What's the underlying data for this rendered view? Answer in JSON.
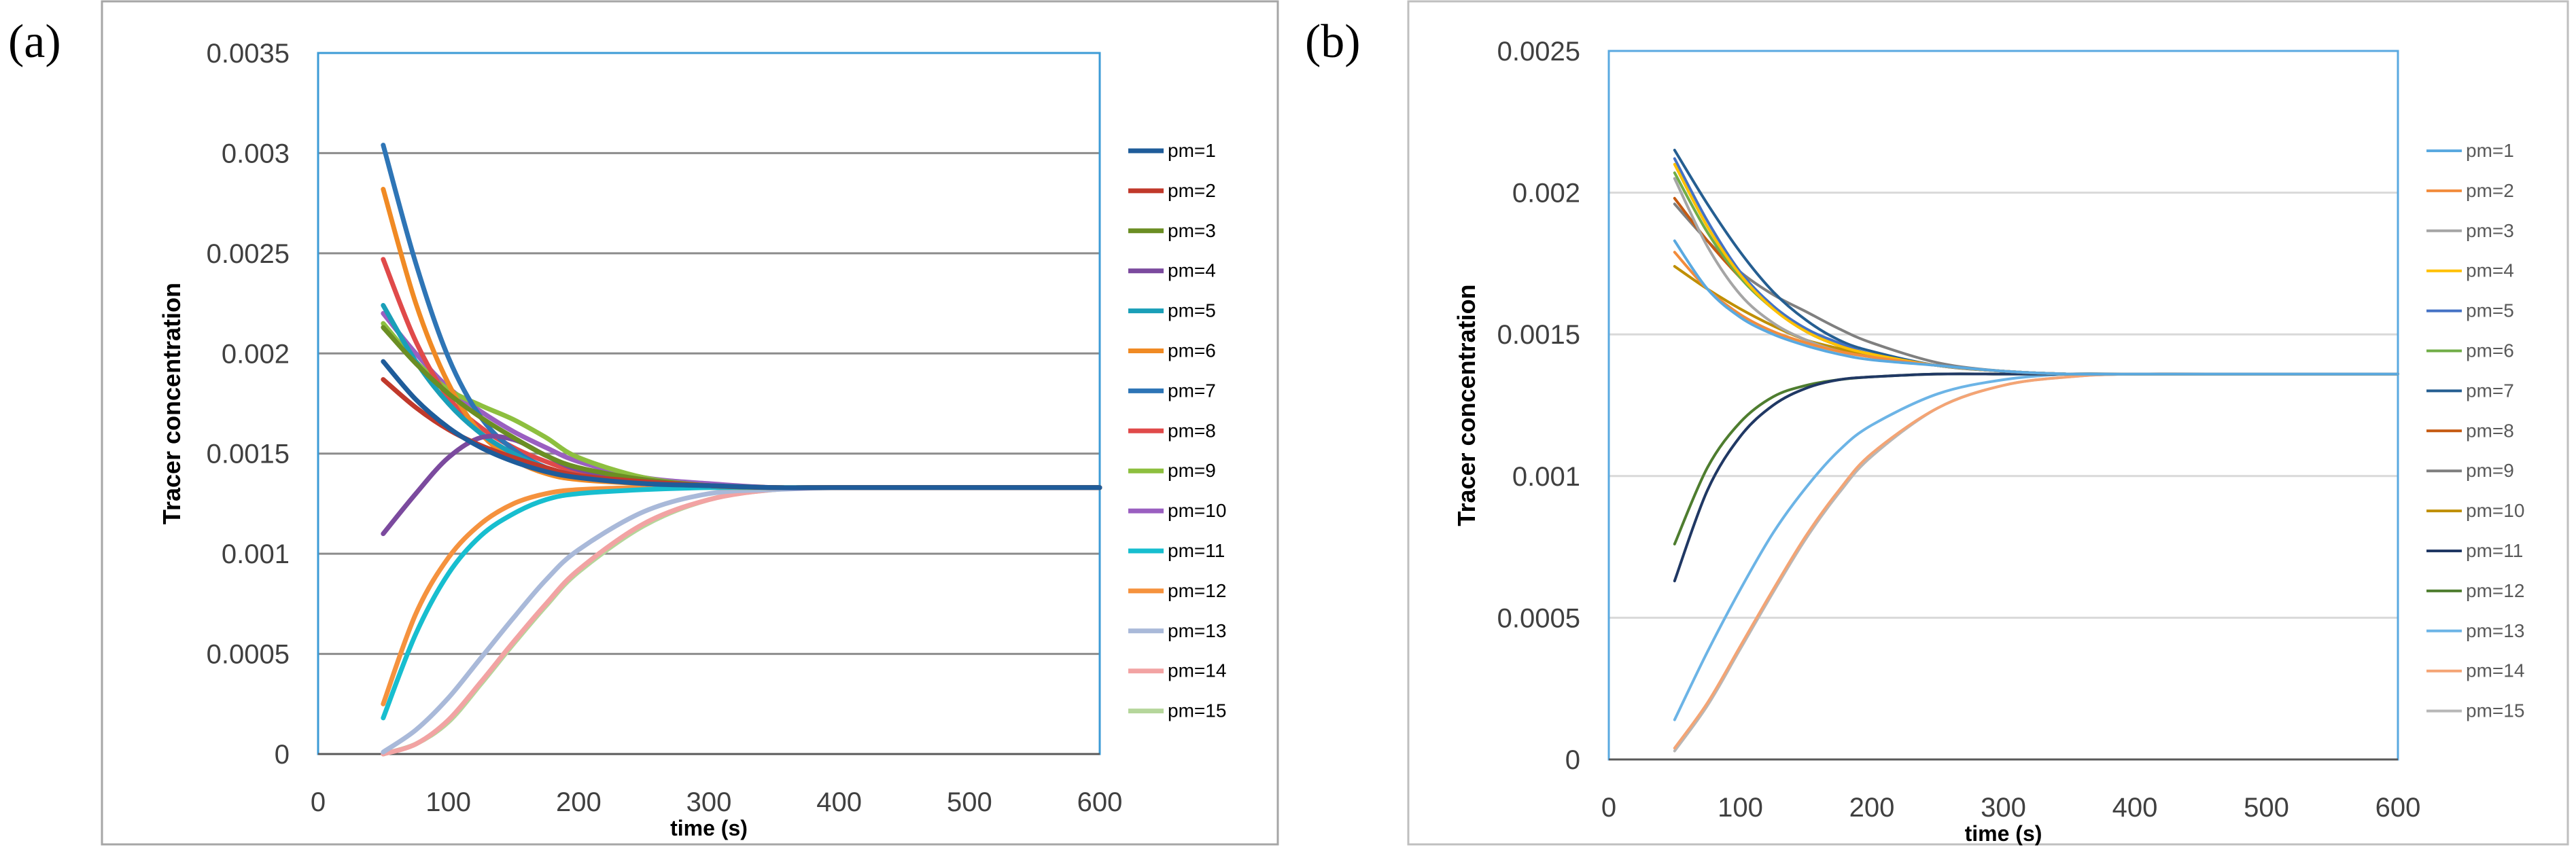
{
  "chart_data": [
    {
      "panel_label": "(a)",
      "type": "line",
      "xlabel": "time (s)",
      "ylabel": "Tracer concentration",
      "xlim": [
        0,
        600
      ],
      "ylim": [
        0,
        0.0035
      ],
      "xticks": [
        0,
        100,
        200,
        300,
        400,
        500,
        600
      ],
      "yticks": [
        0,
        0.0005,
        0.001,
        0.0015,
        0.002,
        0.0025,
        0.003,
        0.0035
      ],
      "ytick_labels": [
        "0",
        "0.0005",
        "0.001",
        "0.0015",
        "0.002",
        "0.0025",
        "0.003",
        "0.0035"
      ],
      "x": [
        50,
        75,
        100,
        125,
        150,
        175,
        200,
        250,
        300,
        350,
        400,
        500,
        600
      ],
      "grid": "horizontal",
      "legend": "right",
      "series": [
        {
          "name": "pm=1",
          "color": "#1f5c9a",
          "values": [
            0.00196,
            0.00177,
            0.00163,
            0.00153,
            0.00146,
            0.00141,
            0.00138,
            0.00135,
            0.00134,
            0.00133,
            0.00133,
            0.00133,
            0.00133
          ]
        },
        {
          "name": "pm=2",
          "color": "#c0392b",
          "values": [
            0.00187,
            0.00173,
            0.00162,
            0.00154,
            0.00148,
            0.00143,
            0.00139,
            0.00136,
            0.00134,
            0.00133,
            0.00133,
            0.00133,
            0.00133
          ]
        },
        {
          "name": "pm=3",
          "color": "#6b8e23",
          "values": [
            0.00213,
            0.00195,
            0.0018,
            0.00168,
            0.00158,
            0.00149,
            0.00143,
            0.00137,
            0.00134,
            0.00133,
            0.00133,
            0.00133,
            0.00133
          ]
        },
        {
          "name": "pm=4",
          "color": "#7b4a9e",
          "values": [
            0.0011,
            0.0013,
            0.00148,
            0.00158,
            0.00157,
            0.00149,
            0.00142,
            0.00137,
            0.00134,
            0.00133,
            0.00133,
            0.00133,
            0.00133
          ]
        },
        {
          "name": "pm=5",
          "color": "#1a9fb8",
          "values": [
            0.00224,
            0.00196,
            0.00175,
            0.0016,
            0.0015,
            0.00143,
            0.00139,
            0.00135,
            0.00134,
            0.00133,
            0.00133,
            0.00133,
            0.00133
          ]
        },
        {
          "name": "pm=6",
          "color": "#f08a24",
          "values": [
            0.00282,
            0.00225,
            0.00185,
            0.0016,
            0.00147,
            0.0014,
            0.00137,
            0.00135,
            0.00134,
            0.00133,
            0.00133,
            0.00133,
            0.00133
          ]
        },
        {
          "name": "pm=7",
          "color": "#2e75b6",
          "values": [
            0.00304,
            0.00245,
            0.00198,
            0.00168,
            0.00152,
            0.00143,
            0.00138,
            0.00135,
            0.00134,
            0.00133,
            0.00133,
            0.00133,
            0.00133
          ]
        },
        {
          "name": "pm=8",
          "color": "#e04a4a",
          "values": [
            0.00247,
            0.00206,
            0.00178,
            0.00163,
            0.00153,
            0.00146,
            0.00141,
            0.00136,
            0.00134,
            0.00133,
            0.00133,
            0.00133,
            0.00133
          ]
        },
        {
          "name": "pm=9",
          "color": "#8dbf3f",
          "values": [
            0.00215,
            0.00196,
            0.00182,
            0.00174,
            0.00167,
            0.00158,
            0.00148,
            0.00138,
            0.00134,
            0.00133,
            0.00133,
            0.00133,
            0.00133
          ]
        },
        {
          "name": "pm=10",
          "color": "#9a5fc0",
          "values": [
            0.0022,
            0.002,
            0.00183,
            0.00171,
            0.00161,
            0.00153,
            0.00146,
            0.00138,
            0.00135,
            0.00133,
            0.00133,
            0.00133,
            0.00133
          ]
        },
        {
          "name": "pm=11",
          "color": "#17becf",
          "values": [
            0.00018,
            0.0006,
            0.0009,
            0.00109,
            0.0012,
            0.00127,
            0.0013,
            0.00132,
            0.00133,
            0.00133,
            0.00133,
            0.00133,
            0.00133
          ]
        },
        {
          "name": "pm=12",
          "color": "#f5923e",
          "values": [
            0.00025,
            0.0007,
            0.00098,
            0.00115,
            0.00125,
            0.0013,
            0.00132,
            0.00133,
            0.00133,
            0.00133,
            0.00133,
            0.00133,
            0.00133
          ]
        },
        {
          "name": "pm=13",
          "color": "#a9b9d9",
          "values": [
            1e-05,
            0.00012,
            0.00028,
            0.00048,
            0.00068,
            0.00087,
            0.00102,
            0.00121,
            0.0013,
            0.00132,
            0.00133,
            0.00133,
            0.00133
          ]
        },
        {
          "name": "pm=14",
          "color": "#f2a3a3",
          "values": [
            0.0,
            5e-05,
            0.00017,
            0.00036,
            0.00056,
            0.00075,
            0.00092,
            0.00115,
            0.00127,
            0.00132,
            0.00133,
            0.00133,
            0.00133
          ]
        },
        {
          "name": "pm=15",
          "color": "#b5d69b",
          "values": [
            0.0,
            5e-05,
            0.00016,
            0.00035,
            0.00055,
            0.00074,
            0.00091,
            0.00114,
            0.00127,
            0.00132,
            0.00133,
            0.00133,
            0.00133
          ]
        }
      ]
    },
    {
      "panel_label": "(b)",
      "type": "line",
      "xlabel": "time (s)",
      "ylabel": "Tracer concentration",
      "xlim": [
        0,
        600
      ],
      "ylim": [
        0,
        0.0025
      ],
      "xticks": [
        0,
        100,
        200,
        300,
        400,
        500,
        600
      ],
      "yticks": [
        0,
        0.0005,
        0.001,
        0.0015,
        0.002,
        0.0025
      ],
      "ytick_labels": [
        "0",
        "0.0005",
        "0.001",
        "0.0015",
        "0.002",
        "0.0025"
      ],
      "x": [
        50,
        75,
        100,
        125,
        150,
        175,
        200,
        250,
        300,
        350,
        400,
        500,
        600
      ],
      "grid": "horizontal",
      "legend": "right",
      "series": [
        {
          "name": "pm=1",
          "color": "#5aa9e0",
          "values": [
            0.00183,
            0.00166,
            0.00156,
            0.0015,
            0.00146,
            0.00143,
            0.00141,
            0.00139,
            0.00137,
            0.00136,
            0.00136,
            0.00136,
            0.00136
          ]
        },
        {
          "name": "pm=2",
          "color": "#f28c3c",
          "values": [
            0.00179,
            0.00166,
            0.00157,
            0.00151,
            0.00147,
            0.00144,
            0.00142,
            0.00139,
            0.00137,
            0.00136,
            0.00136,
            0.00136,
            0.00136
          ]
        },
        {
          "name": "pm=3",
          "color": "#a5a5a5",
          "values": [
            0.00205,
            0.00181,
            0.00164,
            0.00154,
            0.00148,
            0.00144,
            0.00142,
            0.00139,
            0.00137,
            0.00136,
            0.00136,
            0.00136,
            0.00136
          ]
        },
        {
          "name": "pm=4",
          "color": "#ffc000",
          "values": [
            0.0021,
            0.00188,
            0.00171,
            0.00159,
            0.00151,
            0.00146,
            0.00143,
            0.00139,
            0.00137,
            0.00136,
            0.00136,
            0.00136,
            0.00136
          ]
        },
        {
          "name": "pm=5",
          "color": "#4472c4",
          "values": [
            0.00212,
            0.0019,
            0.00172,
            0.0016,
            0.00152,
            0.00147,
            0.00143,
            0.00139,
            0.00137,
            0.00136,
            0.00136,
            0.00136,
            0.00136
          ]
        },
        {
          "name": "pm=6",
          "color": "#70ad47",
          "values": [
            0.00207,
            0.00186,
            0.0017,
            0.00159,
            0.00151,
            0.00146,
            0.00143,
            0.00139,
            0.00137,
            0.00136,
            0.00136,
            0.00136,
            0.00136
          ]
        },
        {
          "name": "pm=7",
          "color": "#255e91",
          "values": [
            0.00215,
            0.00196,
            0.00179,
            0.00165,
            0.00155,
            0.00148,
            0.00144,
            0.00139,
            0.00137,
            0.00136,
            0.00136,
            0.00136,
            0.00136
          ]
        },
        {
          "name": "pm=8",
          "color": "#c55a11",
          "values": [
            0.00198,
            0.00183,
            0.0017,
            0.00159,
            0.00151,
            0.00146,
            0.00143,
            0.00139,
            0.00137,
            0.00136,
            0.00136,
            0.00136,
            0.00136
          ]
        },
        {
          "name": "pm=9",
          "color": "#7f7f7f",
          "values": [
            0.00196,
            0.00183,
            0.00172,
            0.00164,
            0.00158,
            0.00152,
            0.00147,
            0.0014,
            0.00137,
            0.00136,
            0.00136,
            0.00136,
            0.00136
          ]
        },
        {
          "name": "pm=10",
          "color": "#bf8f00",
          "values": [
            0.00174,
            0.00166,
            0.00159,
            0.00153,
            0.00148,
            0.00145,
            0.00142,
            0.00139,
            0.00137,
            0.00136,
            0.00136,
            0.00136,
            0.00136
          ]
        },
        {
          "name": "pm=11",
          "color": "#203864",
          "values": [
            0.00063,
            0.00095,
            0.00114,
            0.00125,
            0.00131,
            0.00134,
            0.00135,
            0.00136,
            0.00136,
            0.00136,
            0.00136,
            0.00136,
            0.00136
          ]
        },
        {
          "name": "pm=12",
          "color": "#4e7d2f",
          "values": [
            0.00076,
            0.00103,
            0.00119,
            0.00128,
            0.00132,
            0.00134,
            0.00135,
            0.00136,
            0.00136,
            0.00136,
            0.00136,
            0.00136,
            0.00136
          ]
        },
        {
          "name": "pm=13",
          "color": "#6cb4e6",
          "values": [
            0.00014,
            0.00038,
            0.0006,
            0.0008,
            0.00096,
            0.00109,
            0.00118,
            0.00129,
            0.00134,
            0.00136,
            0.00136,
            0.00136,
            0.00136
          ]
        },
        {
          "name": "pm=14",
          "color": "#f4a474",
          "values": [
            4e-05,
            0.0002,
            0.0004,
            0.0006,
            0.00079,
            0.00095,
            0.00108,
            0.00124,
            0.00132,
            0.00135,
            0.00136,
            0.00136,
            0.00136
          ]
        },
        {
          "name": "pm=15",
          "color": "#b7b7b7",
          "values": [
            3e-05,
            0.00019,
            0.00039,
            0.00059,
            0.00078,
            0.00094,
            0.00107,
            0.00124,
            0.00132,
            0.00135,
            0.00136,
            0.00136,
            0.00136
          ]
        }
      ]
    }
  ]
}
